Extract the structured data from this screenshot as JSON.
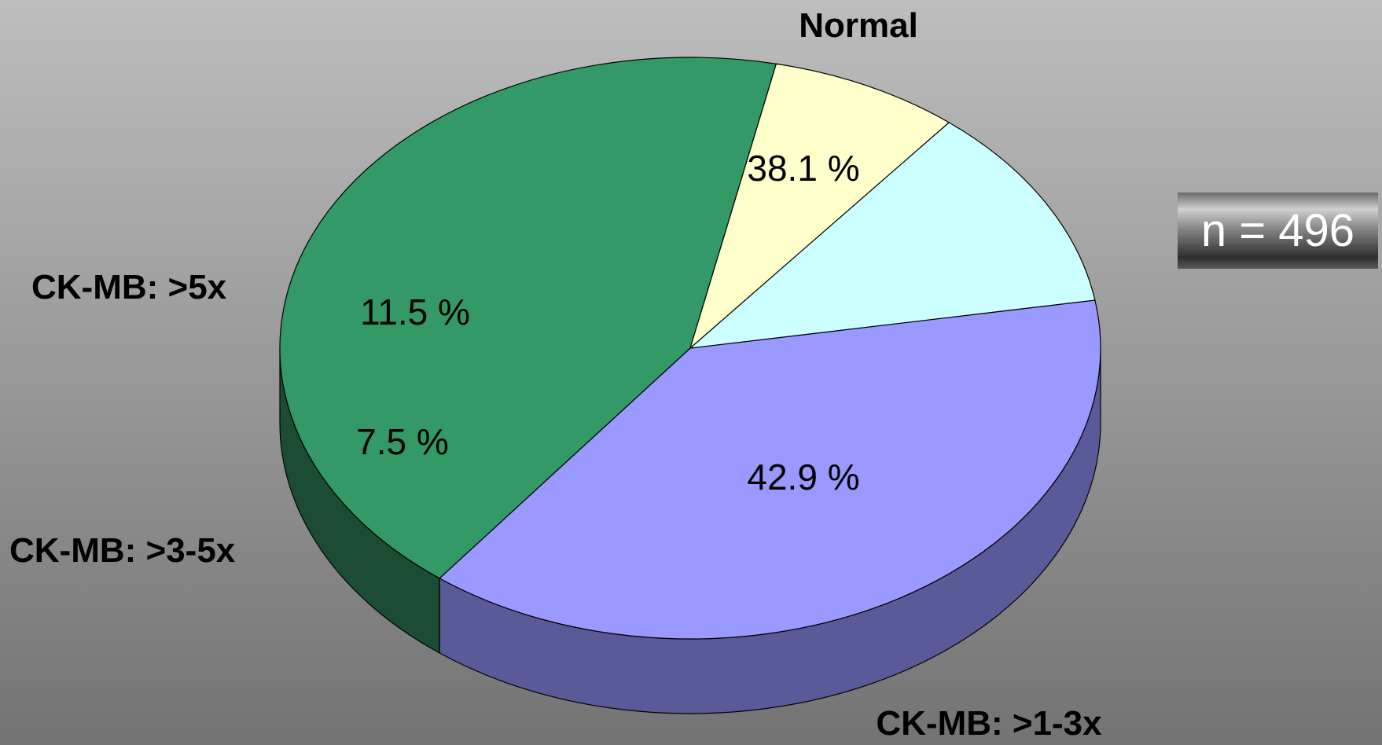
{
  "badge": {
    "text": "n = 496"
  },
  "chart_data": {
    "type": "pie",
    "style": "3d",
    "slices": [
      {
        "label": "Normal",
        "value_label": "38.1 %",
        "value": 38.1,
        "color": "#9999ff",
        "side_color": "#5a5a99"
      },
      {
        "label": "CK-MB: >1-3x",
        "value_label": "42.9 %",
        "value": 42.9,
        "color": "#339966",
        "side_color": "#1c4d34"
      },
      {
        "label": "CK-MB: >3-5x",
        "value_label": "7.5 %",
        "value": 7.5,
        "color": "#ffffcc",
        "side_color": "#80806a"
      },
      {
        "label": "CK-MB: >5x",
        "value_label": "11.5 %",
        "value": 11.5,
        "color": "#ccffff",
        "side_color": "#668080"
      }
    ]
  }
}
